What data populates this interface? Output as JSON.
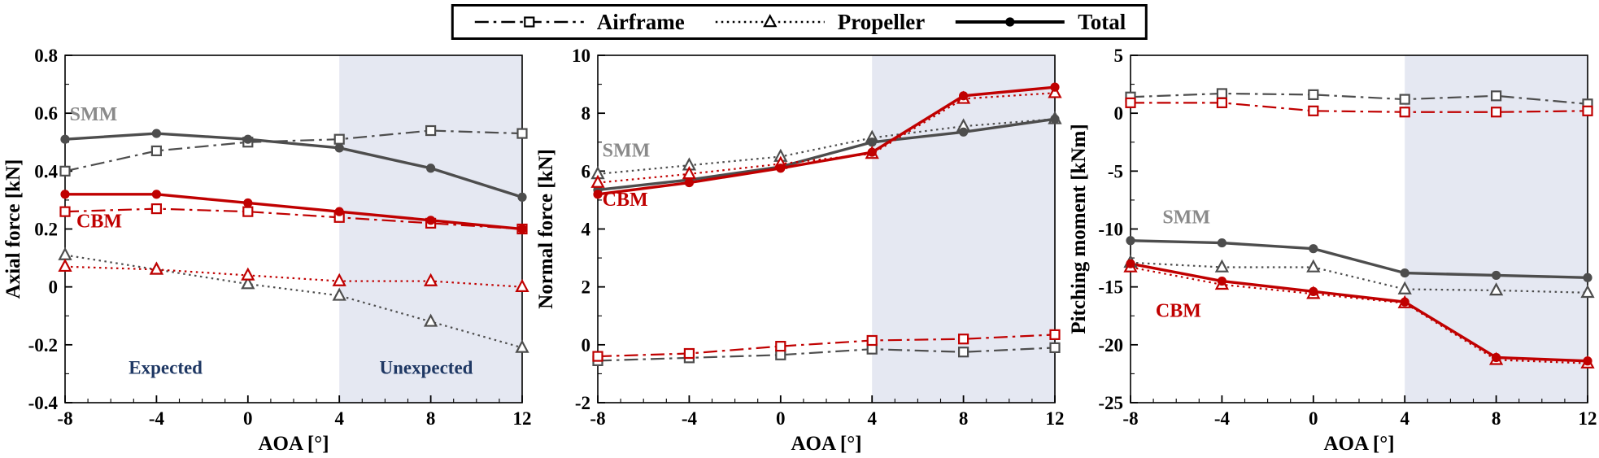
{
  "legend": {
    "items": [
      {
        "label": "Airframe",
        "line": "dashdot",
        "marker": "square-open"
      },
      {
        "label": "Propeller",
        "line": "dotted",
        "marker": "triangle-open"
      },
      {
        "label": "Total",
        "line": "solid",
        "marker": "circle-filled"
      }
    ]
  },
  "colors": {
    "smm": "#4d4d4d",
    "smm_label": "#8a8a8a",
    "cbm": "#c00000",
    "navy": "#1f3864",
    "shade": "#e5e8f2",
    "axis": "#000000"
  },
  "chart_data": [
    {
      "type": "line",
      "title": "",
      "xlabel": "AOA [°]",
      "ylabel": "Axial force [kN]",
      "x": [
        -8,
        -4,
        0,
        4,
        8,
        12
      ],
      "xlim": [
        -8,
        12
      ],
      "ylim": [
        -0.4,
        0.8
      ],
      "xticks": [
        -8,
        -4,
        0,
        4,
        8,
        12
      ],
      "yticks": [
        -0.4,
        -0.2,
        0,
        0.2,
        0.4,
        0.6,
        0.8
      ],
      "xminor": 1,
      "yminor": 0.1,
      "shade_x": [
        4,
        12
      ],
      "series": [
        {
          "name": "SMM Airframe",
          "color": "smm",
          "line": "dashdot",
          "marker": "square-open",
          "values": [
            0.4,
            0.47,
            0.5,
            0.51,
            0.54,
            0.53
          ]
        },
        {
          "name": "SMM Propeller",
          "color": "smm",
          "line": "dotted",
          "marker": "triangle-open",
          "values": [
            0.11,
            0.06,
            0.01,
            -0.03,
            -0.12,
            -0.21
          ]
        },
        {
          "name": "SMM Total",
          "color": "smm",
          "line": "solid",
          "marker": "circle-filled",
          "values": [
            0.51,
            0.53,
            0.51,
            0.48,
            0.41,
            0.31
          ]
        },
        {
          "name": "CBM Airframe",
          "color": "cbm",
          "line": "dashdot",
          "marker": "square-open",
          "values": [
            0.26,
            0.27,
            0.26,
            0.24,
            0.22,
            0.2
          ]
        },
        {
          "name": "CBM Propeller",
          "color": "cbm",
          "line": "dotted",
          "marker": "triangle-open",
          "values": [
            0.07,
            0.06,
            0.04,
            0.02,
            0.02,
            0.0
          ]
        },
        {
          "name": "CBM Total",
          "color": "cbm",
          "line": "solid",
          "marker": "circle-filled",
          "values": [
            0.32,
            0.32,
            0.29,
            0.26,
            0.23,
            0.2
          ]
        }
      ],
      "annotations": [
        {
          "text": "SMM",
          "x": -7.8,
          "y": 0.575,
          "color": "smm_label",
          "anchor": "start",
          "size": 24
        },
        {
          "text": "CBM",
          "x": -7.5,
          "y": 0.205,
          "color": "cbm",
          "anchor": "start",
          "size": 24
        },
        {
          "text": "Expected",
          "x": -3.6,
          "y": -0.3,
          "color": "navy",
          "anchor": "middle",
          "size": 23
        },
        {
          "text": "Unexpected",
          "x": 7.8,
          "y": -0.3,
          "color": "navy",
          "anchor": "middle",
          "size": 23
        }
      ]
    },
    {
      "type": "line",
      "title": "",
      "xlabel": "AOA [°]",
      "ylabel": "Normal force [kN]",
      "x": [
        -8,
        -4,
        0,
        4,
        8,
        12
      ],
      "xlim": [
        -8,
        12
      ],
      "ylim": [
        -2,
        10
      ],
      "xticks": [
        -8,
        -4,
        0,
        4,
        8,
        12
      ],
      "yticks": [
        -2,
        0,
        2,
        4,
        6,
        8,
        10
      ],
      "xminor": 1,
      "yminor": 1,
      "shade_x": [
        4,
        12
      ],
      "series": [
        {
          "name": "SMM Airframe",
          "color": "smm",
          "line": "dashdot",
          "marker": "square-open",
          "values": [
            -0.55,
            -0.45,
            -0.35,
            -0.15,
            -0.25,
            -0.1
          ]
        },
        {
          "name": "SMM Propeller",
          "color": "smm",
          "line": "dotted",
          "marker": "triangle-open",
          "values": [
            5.9,
            6.2,
            6.5,
            7.15,
            7.55,
            7.8
          ]
        },
        {
          "name": "SMM Total",
          "color": "smm",
          "line": "solid",
          "marker": "circle-filled",
          "values": [
            5.35,
            5.7,
            6.15,
            7.0,
            7.35,
            7.8
          ]
        },
        {
          "name": "CBM Airframe",
          "color": "cbm",
          "line": "dashdot",
          "marker": "square-open",
          "values": [
            -0.4,
            -0.3,
            -0.05,
            0.15,
            0.2,
            0.35
          ]
        },
        {
          "name": "CBM Propeller",
          "color": "cbm",
          "line": "dotted",
          "marker": "triangle-open",
          "values": [
            5.6,
            5.9,
            6.25,
            6.6,
            8.5,
            8.7
          ]
        },
        {
          "name": "CBM Total",
          "color": "cbm",
          "line": "solid",
          "marker": "circle-filled",
          "values": [
            5.2,
            5.6,
            6.1,
            6.65,
            8.6,
            8.9
          ]
        }
      ],
      "annotations": [
        {
          "text": "SMM",
          "x": -7.8,
          "y": 6.5,
          "color": "smm_label",
          "anchor": "start",
          "size": 24
        },
        {
          "text": "CBM",
          "x": -7.8,
          "y": 4.8,
          "color": "cbm",
          "anchor": "start",
          "size": 24
        }
      ]
    },
    {
      "type": "line",
      "title": "",
      "xlabel": "AOA [°]",
      "ylabel": "Pitching moment [kNm]",
      "x": [
        -8,
        -4,
        0,
        4,
        8,
        12
      ],
      "xlim": [
        -8,
        12
      ],
      "ylim": [
        -25,
        5
      ],
      "xticks": [
        -8,
        -4,
        0,
        4,
        8,
        12
      ],
      "yticks": [
        -25,
        -20,
        -15,
        -10,
        -5,
        0,
        5
      ],
      "xminor": 1,
      "yminor": 2.5,
      "shade_x": [
        4,
        12
      ],
      "series": [
        {
          "name": "SMM Airframe",
          "color": "smm",
          "line": "dashdot",
          "marker": "square-open",
          "values": [
            1.4,
            1.7,
            1.6,
            1.2,
            1.5,
            0.8
          ]
        },
        {
          "name": "SMM Propeller",
          "color": "smm",
          "line": "dotted",
          "marker": "triangle-open",
          "values": [
            -12.9,
            -13.3,
            -13.3,
            -15.2,
            -15.3,
            -15.5
          ]
        },
        {
          "name": "SMM Total",
          "color": "smm",
          "line": "solid",
          "marker": "circle-filled",
          "values": [
            -11.0,
            -11.2,
            -11.7,
            -13.8,
            -14.0,
            -14.2
          ]
        },
        {
          "name": "CBM Airframe",
          "color": "cbm",
          "line": "dashdot",
          "marker": "square-open",
          "values": [
            0.9,
            0.9,
            0.2,
            0.1,
            0.1,
            0.2
          ]
        },
        {
          "name": "CBM Propeller",
          "color": "cbm",
          "line": "dotted",
          "marker": "triangle-open",
          "values": [
            -13.3,
            -14.8,
            -15.6,
            -16.4,
            -21.3,
            -21.6
          ]
        },
        {
          "name": "CBM Total",
          "color": "cbm",
          "line": "solid",
          "marker": "circle-filled",
          "values": [
            -13.0,
            -14.5,
            -15.4,
            -16.3,
            -21.1,
            -21.4
          ]
        }
      ],
      "annotations": [
        {
          "text": "SMM",
          "x": -6.6,
          "y": -9.5,
          "color": "smm_label",
          "anchor": "start",
          "size": 24
        },
        {
          "text": "CBM",
          "x": -6.9,
          "y": -17.6,
          "color": "cbm",
          "anchor": "start",
          "size": 24
        }
      ]
    }
  ]
}
